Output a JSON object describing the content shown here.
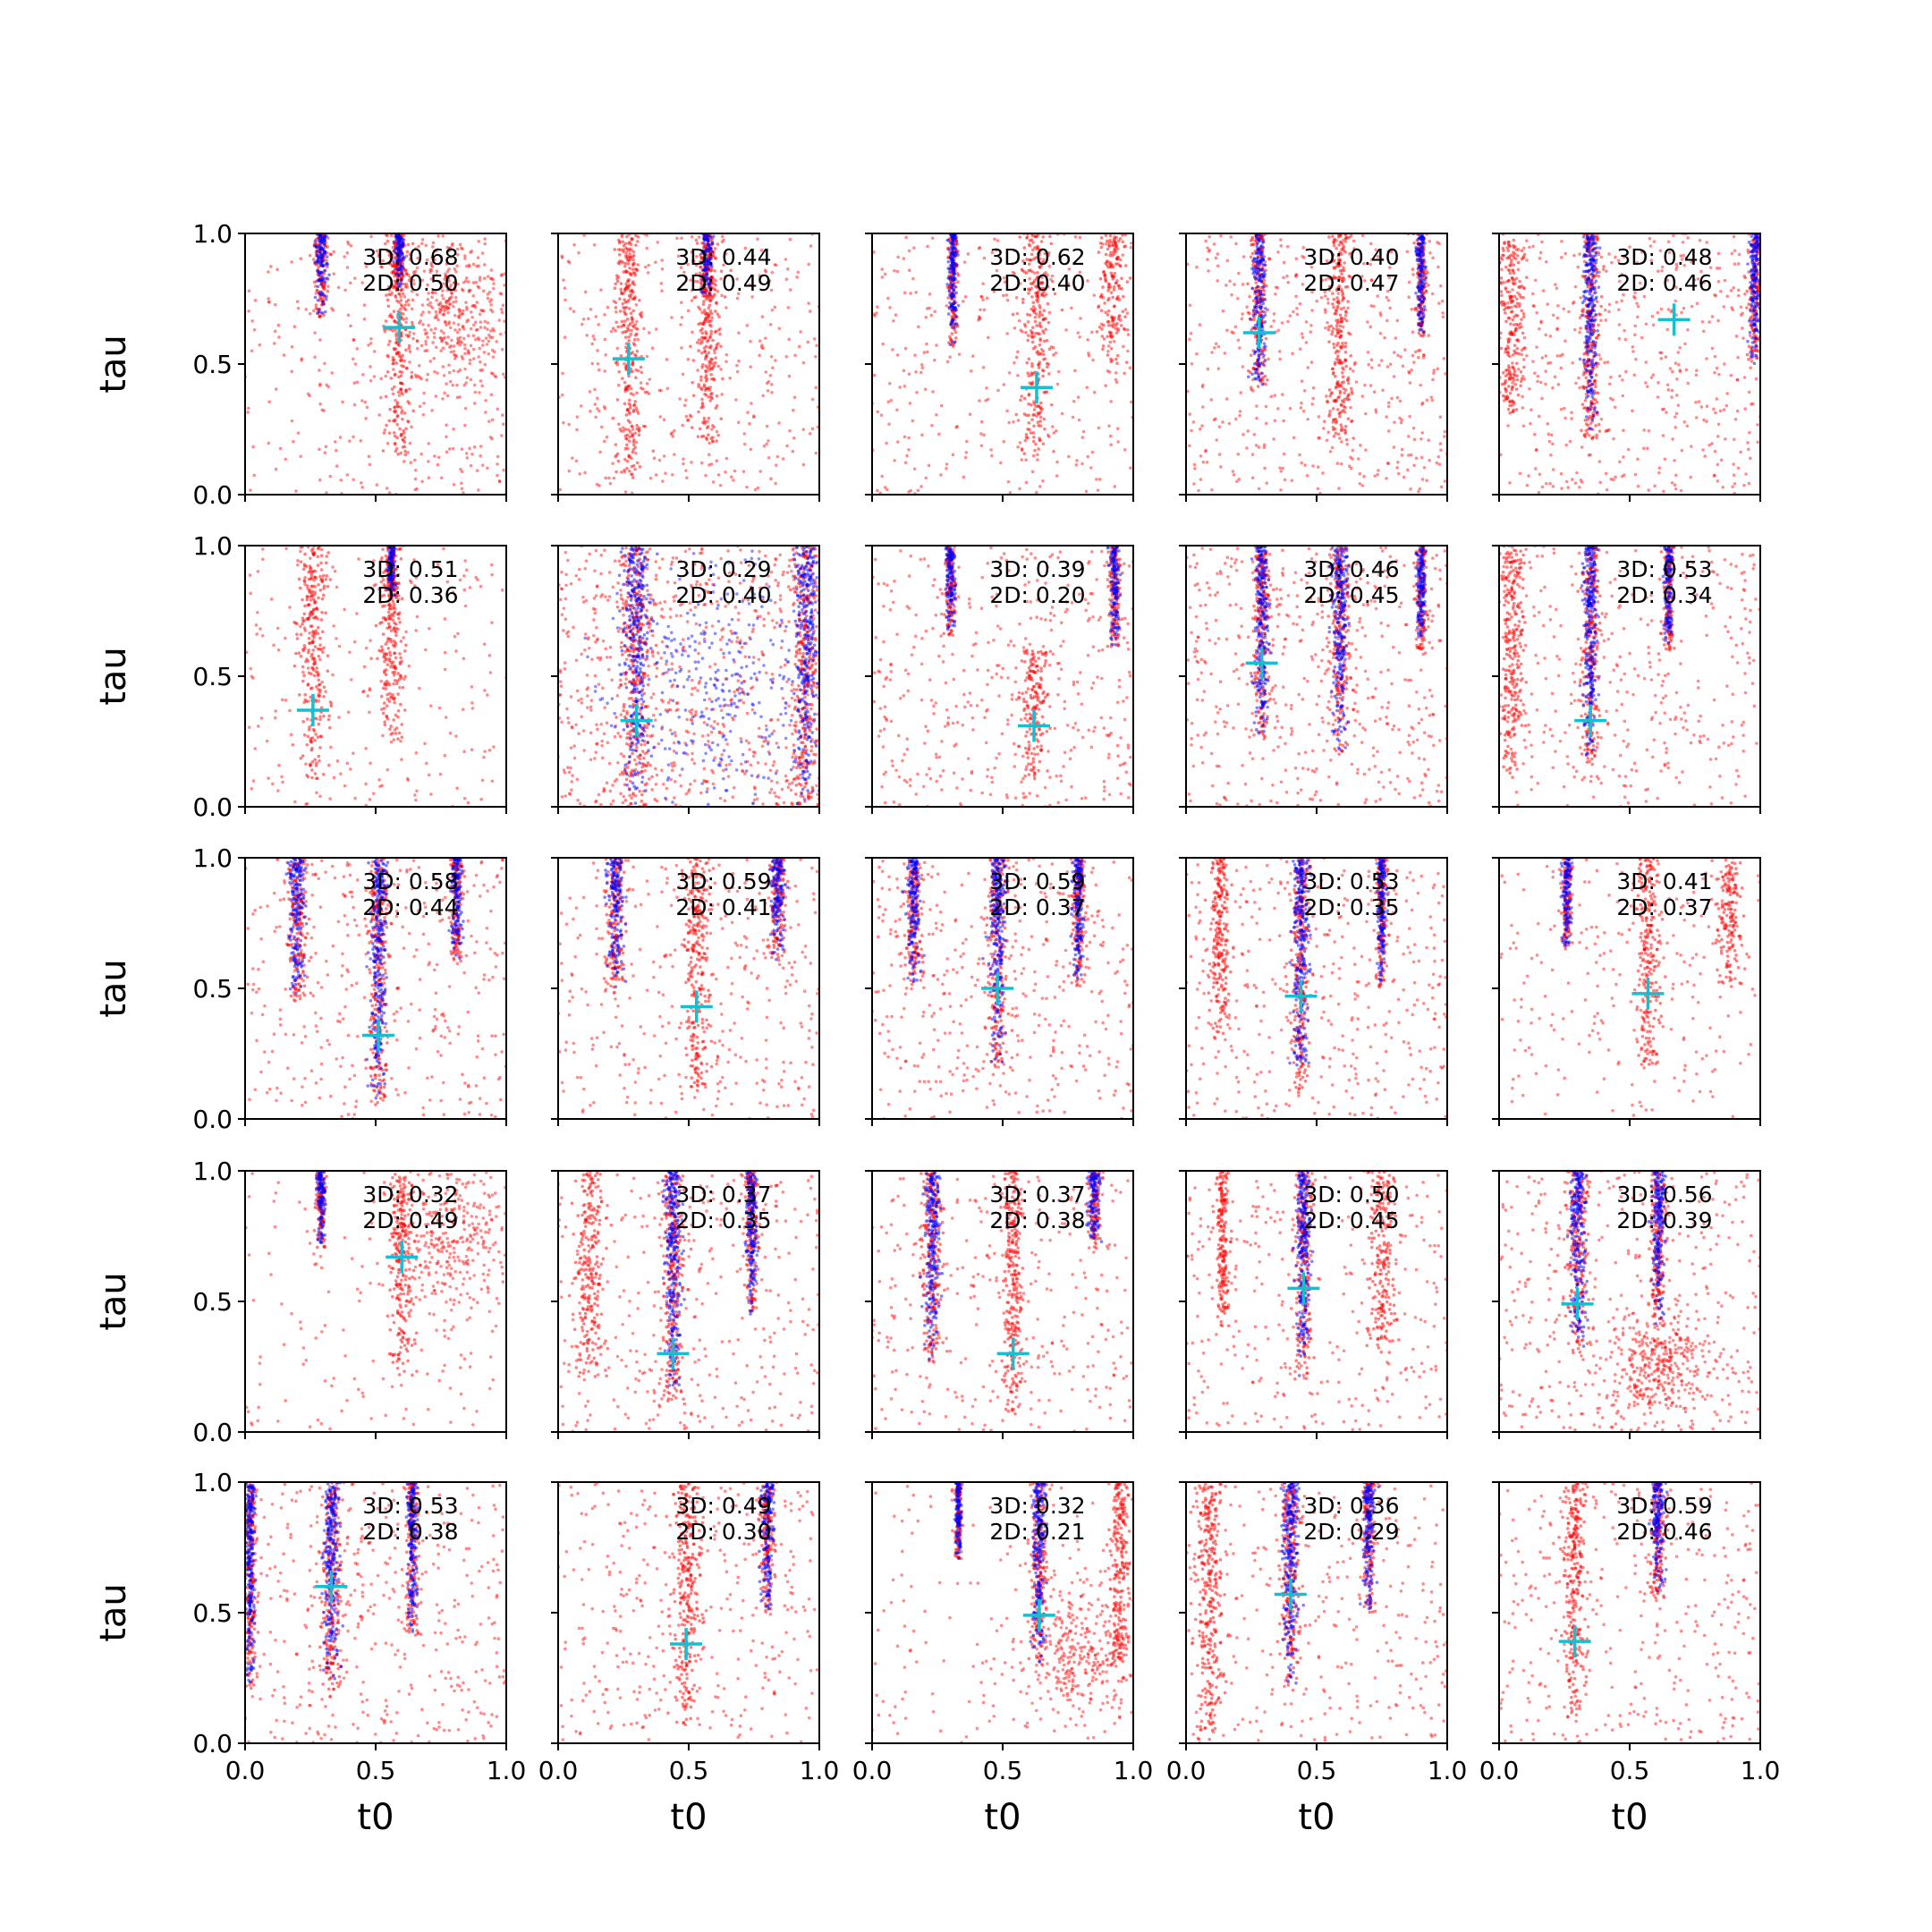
{
  "chart_data": {
    "type": "scatter",
    "layout": "5x5 grid of subplots",
    "shared": {
      "xlabel": "t0",
      "ylabel": "tau",
      "xlim": [
        0.0,
        1.0
      ],
      "ylim": [
        0.0,
        1.0
      ],
      "xticks": [
        "0.0",
        "0.5",
        "1.0"
      ],
      "yticks": [
        "0.0",
        "0.5",
        "1.0"
      ],
      "grid": false,
      "legend": "none",
      "colors": {
        "series_red": "#ff0000",
        "series_blue": "#0000ff",
        "marker_cross": "#17becf"
      }
    },
    "panels": [
      {
        "row": 0,
        "col": 0,
        "label_3d": "3D: 0.68",
        "label_2d": "2D: 0.50",
        "cross": [
          0.59,
          0.64
        ],
        "bands": [
          [
            0.29,
            0.68,
            1.0,
            0.011,
            "b"
          ],
          [
            0.59,
            0.15,
            1.0,
            0.02,
            "r"
          ],
          [
            0.59,
            0.78,
            1.0,
            0.01,
            "b"
          ]
        ],
        "clouds": [
          [
            0.8,
            0.7,
            0.1,
            0.15,
            "r"
          ]
        ],
        "bg": 0.35
      },
      {
        "row": 0,
        "col": 1,
        "label_3d": "3D: 0.44",
        "label_2d": "2D: 0.49",
        "cross": [
          0.27,
          0.52
        ],
        "bands": [
          [
            0.27,
            0.04,
            1.0,
            0.02,
            "r"
          ],
          [
            0.57,
            0.2,
            1.0,
            0.02,
            "r"
          ],
          [
            0.57,
            0.75,
            1.0,
            0.01,
            "b"
          ]
        ],
        "clouds": [],
        "bg": 0.4
      },
      {
        "row": 0,
        "col": 2,
        "label_3d": "3D: 0.62",
        "label_2d": "2D: 0.40",
        "cross": [
          0.63,
          0.41
        ],
        "bands": [
          [
            0.31,
            0.56,
            1.0,
            0.008,
            "b"
          ],
          [
            0.63,
            0.15,
            1.0,
            0.025,
            "r"
          ],
          [
            0.92,
            0.5,
            1.0,
            0.02,
            "r"
          ]
        ],
        "clouds": [],
        "bg": 0.35
      },
      {
        "row": 0,
        "col": 3,
        "label_3d": "3D: 0.40",
        "label_2d": "2D: 0.47",
        "cross": [
          0.28,
          0.62
        ],
        "bands": [
          [
            0.28,
            0.4,
            1.0,
            0.012,
            "b"
          ],
          [
            0.59,
            0.2,
            1.0,
            0.02,
            "r"
          ],
          [
            0.9,
            0.6,
            1.0,
            0.008,
            "b"
          ]
        ],
        "clouds": [],
        "bg": 0.5
      },
      {
        "row": 0,
        "col": 4,
        "label_3d": "3D: 0.48",
        "label_2d": "2D: 0.46",
        "cross": [
          0.67,
          0.67
        ],
        "bands": [
          [
            0.05,
            0.3,
            1.0,
            0.02,
            "r"
          ],
          [
            0.35,
            0.2,
            1.0,
            0.013,
            "b"
          ],
          [
            0.98,
            0.5,
            1.0,
            0.01,
            "b"
          ]
        ],
        "clouds": [],
        "bg": 0.55
      },
      {
        "row": 1,
        "col": 0,
        "label_3d": "3D: 0.51",
        "label_2d": "2D: 0.36",
        "cross": [
          0.26,
          0.37
        ],
        "bands": [
          [
            0.26,
            0.1,
            1.0,
            0.025,
            "r"
          ],
          [
            0.56,
            0.25,
            1.0,
            0.02,
            "r"
          ],
          [
            0.56,
            0.8,
            1.0,
            0.008,
            "b"
          ]
        ],
        "clouds": [],
        "bg": 0.25
      },
      {
        "row": 1,
        "col": 1,
        "label_3d": "3D: 0.29",
        "label_2d": "2D: 0.40",
        "cross": [
          0.3,
          0.33
        ],
        "bands": [
          [
            0.3,
            0.0,
            1.0,
            0.025,
            "b"
          ],
          [
            0.95,
            0.0,
            1.0,
            0.02,
            "b"
          ]
        ],
        "clouds": [
          [
            0.6,
            0.5,
            0.2,
            0.25,
            "b"
          ]
        ],
        "bg": 0.85
      },
      {
        "row": 1,
        "col": 2,
        "label_3d": "3D: 0.39",
        "label_2d": "2D: 0.20",
        "cross": [
          0.62,
          0.31
        ],
        "bands": [
          [
            0.3,
            0.65,
            1.0,
            0.008,
            "b"
          ],
          [
            0.62,
            0.1,
            0.6,
            0.02,
            "r"
          ],
          [
            0.93,
            0.6,
            1.0,
            0.01,
            "b"
          ]
        ],
        "clouds": [],
        "bg": 0.45
      },
      {
        "row": 1,
        "col": 3,
        "label_3d": "3D: 0.46",
        "label_2d": "2D: 0.45",
        "cross": [
          0.29,
          0.55
        ],
        "bands": [
          [
            0.29,
            0.25,
            1.0,
            0.013,
            "b"
          ],
          [
            0.59,
            0.2,
            1.0,
            0.015,
            "b"
          ],
          [
            0.9,
            0.6,
            1.0,
            0.008,
            "b"
          ]
        ],
        "clouds": [],
        "bg": 0.55
      },
      {
        "row": 1,
        "col": 4,
        "label_3d": "3D: 0.53",
        "label_2d": "2D: 0.34",
        "cross": [
          0.35,
          0.33
        ],
        "bands": [
          [
            0.05,
            0.1,
            1.0,
            0.02,
            "r"
          ],
          [
            0.35,
            0.15,
            1.0,
            0.013,
            "b"
          ],
          [
            0.65,
            0.6,
            1.0,
            0.008,
            "b"
          ]
        ],
        "clouds": [],
        "bg": 0.4
      },
      {
        "row": 2,
        "col": 0,
        "label_3d": "3D: 0.58",
        "label_2d": "2D: 0.44",
        "cross": [
          0.51,
          0.32
        ],
        "bands": [
          [
            0.2,
            0.45,
            1.0,
            0.015,
            "b"
          ],
          [
            0.51,
            0.05,
            1.0,
            0.015,
            "b"
          ],
          [
            0.81,
            0.6,
            1.0,
            0.01,
            "b"
          ]
        ],
        "clouds": [],
        "bg": 0.4
      },
      {
        "row": 2,
        "col": 1,
        "label_3d": "3D: 0.59",
        "label_2d": "2D: 0.41",
        "cross": [
          0.53,
          0.43
        ],
        "bands": [
          [
            0.22,
            0.5,
            1.0,
            0.015,
            "b"
          ],
          [
            0.53,
            0.1,
            1.0,
            0.02,
            "r"
          ],
          [
            0.84,
            0.6,
            1.0,
            0.012,
            "b"
          ]
        ],
        "clouds": [],
        "bg": 0.4
      },
      {
        "row": 2,
        "col": 2,
        "label_3d": "3D: 0.59",
        "label_2d": "2D: 0.37",
        "cross": [
          0.48,
          0.5
        ],
        "bands": [
          [
            0.16,
            0.5,
            1.0,
            0.012,
            "b"
          ],
          [
            0.48,
            0.2,
            1.0,
            0.015,
            "b"
          ],
          [
            0.79,
            0.5,
            1.0,
            0.01,
            "b"
          ]
        ],
        "clouds": [],
        "bg": 0.45
      },
      {
        "row": 2,
        "col": 3,
        "label_3d": "3D: 0.53",
        "label_2d": "2D: 0.35",
        "cross": [
          0.44,
          0.47
        ],
        "bands": [
          [
            0.13,
            0.3,
            1.0,
            0.015,
            "r"
          ],
          [
            0.44,
            0.1,
            1.0,
            0.015,
            "b"
          ],
          [
            0.75,
            0.5,
            1.0,
            0.008,
            "b"
          ]
        ],
        "clouds": [],
        "bg": 0.45
      },
      {
        "row": 2,
        "col": 4,
        "label_3d": "3D: 0.41",
        "label_2d": "2D: 0.37",
        "cross": [
          0.57,
          0.48
        ],
        "bands": [
          [
            0.26,
            0.65,
            1.0,
            0.008,
            "b"
          ],
          [
            0.57,
            0.2,
            1.0,
            0.02,
            "r"
          ],
          [
            0.88,
            0.5,
            1.0,
            0.02,
            "r"
          ]
        ],
        "clouds": [],
        "bg": 0.25
      },
      {
        "row": 3,
        "col": 0,
        "label_3d": "3D: 0.32",
        "label_2d": "2D: 0.49",
        "cross": [
          0.6,
          0.67
        ],
        "bands": [
          [
            0.29,
            0.7,
            1.0,
            0.008,
            "b"
          ],
          [
            0.6,
            0.2,
            1.0,
            0.02,
            "r"
          ]
        ],
        "clouds": [
          [
            0.8,
            0.75,
            0.12,
            0.15,
            "r"
          ]
        ],
        "bg": 0.15
      },
      {
        "row": 3,
        "col": 1,
        "label_3d": "3D: 0.37",
        "label_2d": "2D: 0.35",
        "cross": [
          0.44,
          0.3
        ],
        "bands": [
          [
            0.12,
            0.2,
            1.0,
            0.025,
            "r"
          ],
          [
            0.44,
            0.1,
            1.0,
            0.015,
            "b"
          ],
          [
            0.74,
            0.45,
            1.0,
            0.01,
            "b"
          ]
        ],
        "clouds": [],
        "bg": 0.4
      },
      {
        "row": 3,
        "col": 2,
        "label_3d": "3D: 0.37",
        "label_2d": "2D: 0.38",
        "cross": [
          0.54,
          0.3
        ],
        "bands": [
          [
            0.23,
            0.25,
            1.0,
            0.015,
            "b"
          ],
          [
            0.54,
            0.05,
            1.0,
            0.015,
            "r"
          ],
          [
            0.85,
            0.7,
            1.0,
            0.01,
            "b"
          ]
        ],
        "clouds": [],
        "bg": 0.35
      },
      {
        "row": 3,
        "col": 3,
        "label_3d": "3D: 0.50",
        "label_2d": "2D: 0.45",
        "cross": [
          0.45,
          0.55
        ],
        "bands": [
          [
            0.14,
            0.4,
            1.0,
            0.01,
            "r"
          ],
          [
            0.45,
            0.2,
            1.0,
            0.013,
            "b"
          ],
          [
            0.75,
            0.3,
            1.0,
            0.02,
            "r"
          ]
        ],
        "clouds": [],
        "bg": 0.35
      },
      {
        "row": 3,
        "col": 4,
        "label_3d": "3D: 0.56",
        "label_2d": "2D: 0.39",
        "cross": [
          0.3,
          0.49
        ],
        "bands": [
          [
            0.3,
            0.3,
            1.0,
            0.015,
            "b"
          ],
          [
            0.61,
            0.4,
            1.0,
            0.012,
            "b"
          ]
        ],
        "clouds": [
          [
            0.6,
            0.25,
            0.1,
            0.1,
            "r"
          ]
        ],
        "bg": 0.45
      },
      {
        "row": 4,
        "col": 0,
        "label_3d": "3D: 0.53",
        "label_2d": "2D: 0.38",
        "cross": [
          0.33,
          0.6
        ],
        "bands": [
          [
            0.02,
            0.2,
            1.0,
            0.01,
            "b"
          ],
          [
            0.33,
            0.2,
            1.0,
            0.015,
            "b"
          ],
          [
            0.64,
            0.4,
            1.0,
            0.01,
            "b"
          ]
        ],
        "clouds": [],
        "bg": 0.45
      },
      {
        "row": 4,
        "col": 1,
        "label_3d": "3D: 0.49",
        "label_2d": "2D: 0.30",
        "cross": [
          0.49,
          0.38
        ],
        "bands": [
          [
            0.49,
            0.05,
            1.0,
            0.02,
            "r"
          ],
          [
            0.8,
            0.5,
            1.0,
            0.012,
            "b"
          ]
        ],
        "clouds": [],
        "bg": 0.4
      },
      {
        "row": 4,
        "col": 2,
        "label_3d": "3D: 0.32",
        "label_2d": "2D: 0.21",
        "cross": [
          0.64,
          0.49
        ],
        "bands": [
          [
            0.33,
            0.7,
            1.0,
            0.006,
            "b"
          ],
          [
            0.64,
            0.3,
            1.0,
            0.012,
            "b"
          ],
          [
            0.95,
            0.3,
            1.0,
            0.015,
            "r"
          ]
        ],
        "clouds": [
          [
            0.8,
            0.35,
            0.12,
            0.12,
            "r"
          ]
        ],
        "bg": 0.15
      },
      {
        "row": 4,
        "col": 3,
        "label_3d": "3D: 0.36",
        "label_2d": "2D: 0.29",
        "cross": [
          0.4,
          0.57
        ],
        "bands": [
          [
            0.09,
            0.0,
            1.0,
            0.02,
            "r"
          ],
          [
            0.4,
            0.2,
            1.0,
            0.015,
            "b"
          ],
          [
            0.7,
            0.5,
            1.0,
            0.01,
            "b"
          ]
        ],
        "clouds": [],
        "bg": 0.35
      },
      {
        "row": 4,
        "col": 4,
        "label_3d": "3D: 0.59",
        "label_2d": "2D: 0.46",
        "cross": [
          0.29,
          0.39
        ],
        "bands": [
          [
            0.29,
            0.1,
            1.0,
            0.02,
            "r"
          ],
          [
            0.61,
            0.55,
            1.0,
            0.012,
            "b"
          ]
        ],
        "clouds": [],
        "bg": 0.4
      }
    ]
  }
}
